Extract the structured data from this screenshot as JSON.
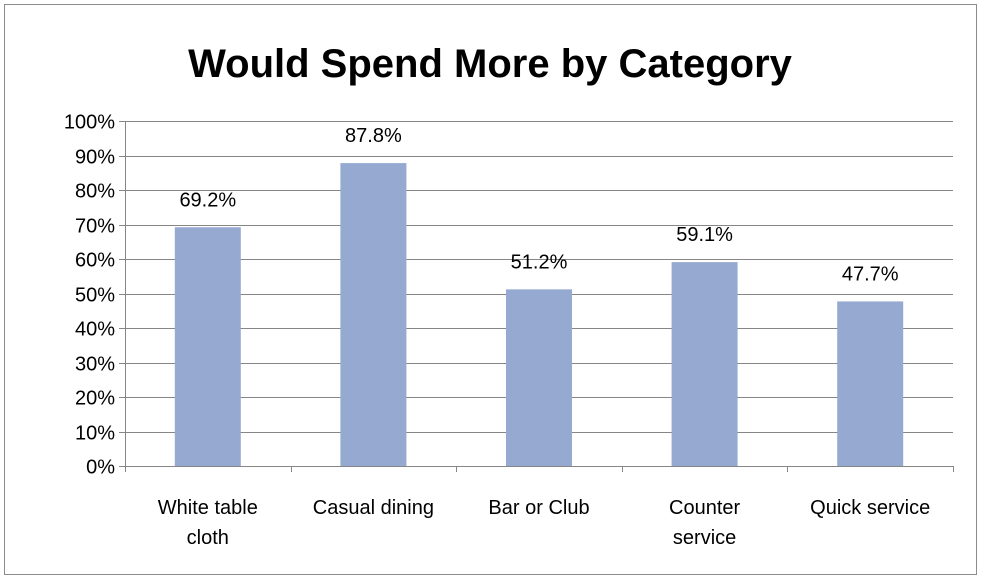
{
  "chart_data": {
    "type": "bar",
    "title": "Would Spend More by Category",
    "xlabel": "",
    "ylabel": "",
    "categories": [
      [
        "White table",
        "cloth"
      ],
      [
        "Casual dining"
      ],
      [
        "Bar or Club"
      ],
      [
        "Counter",
        "service"
      ],
      [
        "Quick service"
      ]
    ],
    "values": [
      69.2,
      87.8,
      51.2,
      59.1,
      47.7
    ],
    "data_labels": [
      "69.2%",
      "87.8%",
      "51.2%",
      "59.1%",
      "47.7%"
    ],
    "ylim": [
      0,
      100
    ],
    "yticks": [
      0,
      10,
      20,
      30,
      40,
      50,
      60,
      70,
      80,
      90,
      100
    ],
    "ytick_labels": [
      "0%",
      "10%",
      "20%",
      "30%",
      "40%",
      "50%",
      "60%",
      "70%",
      "80%",
      "90%",
      "100%"
    ],
    "grid": true,
    "legend": "none",
    "bar_color": "#95a9d1",
    "grid_color": "#868686"
  }
}
